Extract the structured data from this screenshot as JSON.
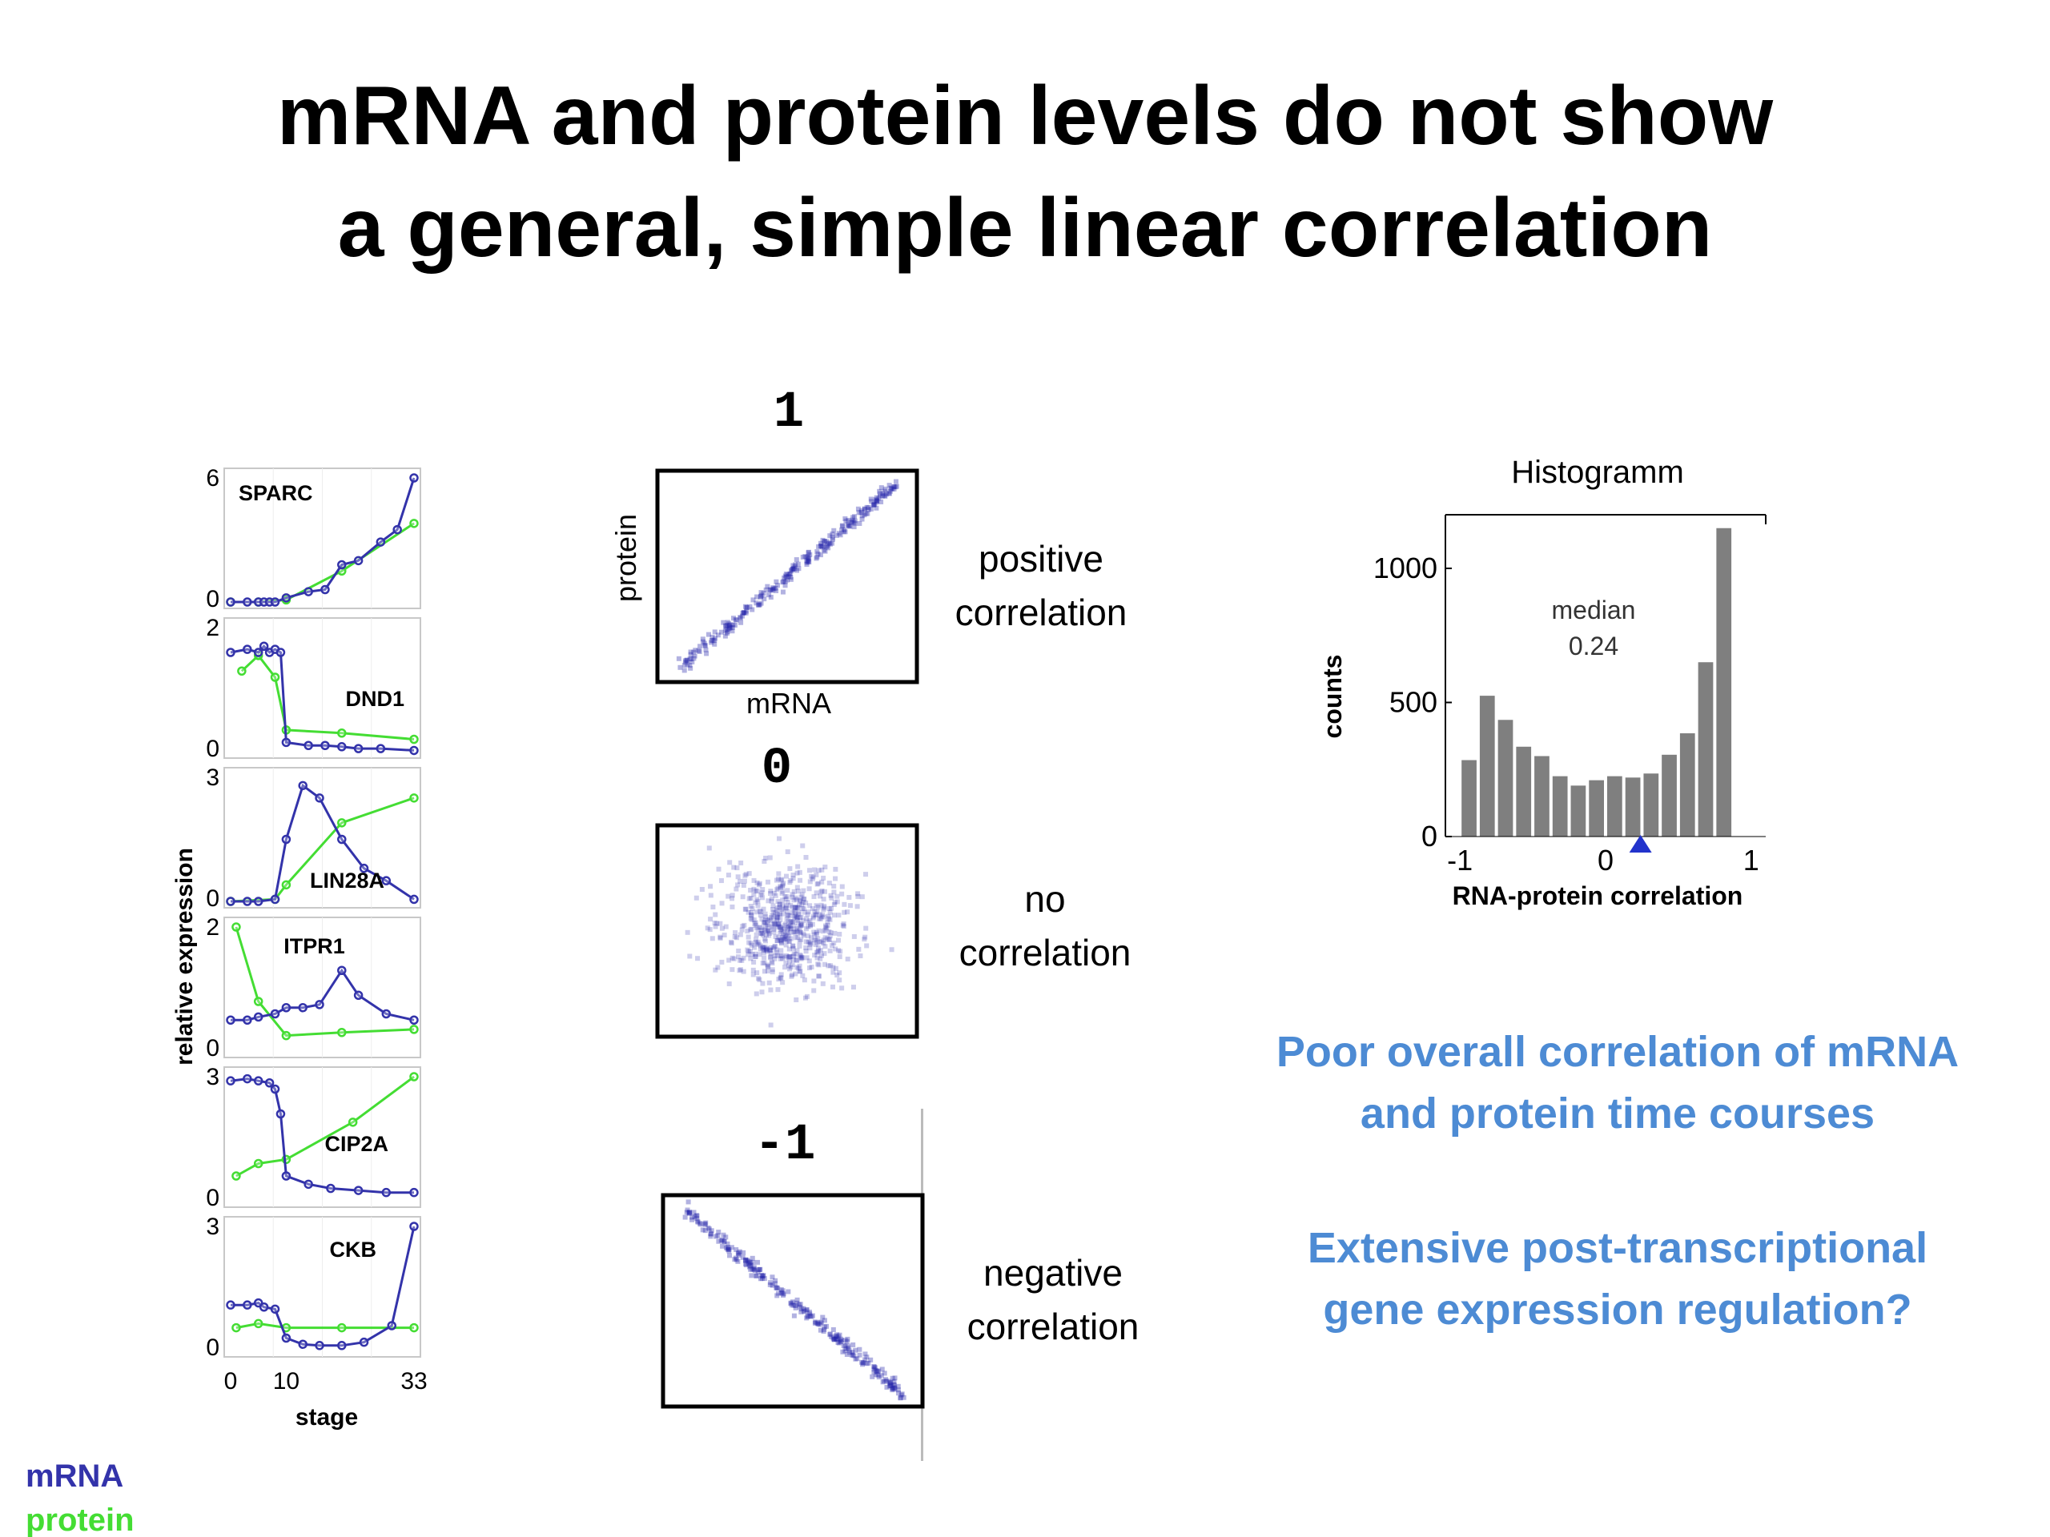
{
  "title": {
    "line1": "mRNA and protein levels do not show",
    "line2": "a general, simple linear correlation"
  },
  "legend": {
    "mrna": "mRNA",
    "protein": "protein",
    "mrna_color": "#3333aa",
    "protein_color": "#44dd33"
  },
  "timecourse": {
    "ylabel": "relative  expression",
    "xlabel": "stage",
    "xticks": [
      "0",
      "10",
      "33"
    ],
    "xlim": [
      0,
      33
    ],
    "genes": [
      {
        "name": "SPARC",
        "ymax_label": "6",
        "ymin_label": "0",
        "ymax": 6,
        "mrna": [
          [
            0,
            0
          ],
          [
            3,
            0
          ],
          [
            5,
            0
          ],
          [
            6,
            0
          ],
          [
            7,
            0
          ],
          [
            8,
            0
          ],
          [
            10,
            0.2
          ],
          [
            14,
            0.5
          ],
          [
            17,
            0.6
          ],
          [
            20,
            1.8
          ],
          [
            23,
            2.0
          ],
          [
            27,
            2.9
          ],
          [
            30,
            3.5
          ],
          [
            33,
            6.0
          ]
        ],
        "protein": [
          [
            0,
            0
          ],
          [
            5,
            0
          ],
          [
            10,
            0.1
          ],
          [
            20,
            1.5
          ],
          [
            33,
            3.8
          ]
        ]
      },
      {
        "name": "DND1",
        "ymax_label": "2",
        "ymin_label": "0",
        "ymax": 2,
        "mrna": [
          [
            0,
            1.6
          ],
          [
            3,
            1.65
          ],
          [
            5,
            1.6
          ],
          [
            6,
            1.7
          ],
          [
            7,
            1.6
          ],
          [
            8,
            1.65
          ],
          [
            9,
            1.6
          ],
          [
            10,
            0.15
          ],
          [
            14,
            0.1
          ],
          [
            17,
            0.1
          ],
          [
            20,
            0.08
          ],
          [
            23,
            0.05
          ],
          [
            27,
            0.05
          ],
          [
            33,
            0.02
          ]
        ],
        "protein": [
          [
            2,
            1.3
          ],
          [
            5,
            1.55
          ],
          [
            8,
            1.2
          ],
          [
            10,
            0.35
          ],
          [
            20,
            0.3
          ],
          [
            33,
            0.2
          ]
        ]
      },
      {
        "name": "LIN28A",
        "ymax_label": "3",
        "ymin_label": "0",
        "ymax": 3,
        "mrna": [
          [
            0,
            0
          ],
          [
            3,
            0
          ],
          [
            5,
            0
          ],
          [
            8,
            0.05
          ],
          [
            10,
            1.5
          ],
          [
            13,
            2.8
          ],
          [
            16,
            2.5
          ],
          [
            20,
            1.5
          ],
          [
            24,
            0.8
          ],
          [
            28,
            0.5
          ],
          [
            33,
            0.05
          ]
        ],
        "protein": [
          [
            0,
            0
          ],
          [
            8,
            0.05
          ],
          [
            10,
            0.4
          ],
          [
            20,
            1.9
          ],
          [
            33,
            2.5
          ]
        ]
      },
      {
        "name": "ITPR1",
        "ymax_label": "2",
        "ymin_label": "0",
        "ymax": 2,
        "mrna": [
          [
            0,
            0.5
          ],
          [
            3,
            0.5
          ],
          [
            5,
            0.55
          ],
          [
            8,
            0.6
          ],
          [
            10,
            0.7
          ],
          [
            13,
            0.7
          ],
          [
            16,
            0.75
          ],
          [
            20,
            1.3
          ],
          [
            23,
            0.9
          ],
          [
            28,
            0.6
          ],
          [
            33,
            0.5
          ]
        ],
        "protein": [
          [
            1,
            2.0
          ],
          [
            5,
            0.8
          ],
          [
            10,
            0.25
          ],
          [
            20,
            0.3
          ],
          [
            33,
            0.35
          ]
        ]
      },
      {
        "name": "CIP2A",
        "ymax_label": "3",
        "ymin_label": "0",
        "ymax": 3,
        "mrna": [
          [
            0,
            2.9
          ],
          [
            3,
            2.95
          ],
          [
            5,
            2.9
          ],
          [
            7,
            2.85
          ],
          [
            8,
            2.7
          ],
          [
            9,
            2.1
          ],
          [
            10,
            0.6
          ],
          [
            14,
            0.4
          ],
          [
            18,
            0.3
          ],
          [
            23,
            0.25
          ],
          [
            28,
            0.2
          ],
          [
            33,
            0.2
          ]
        ],
        "protein": [
          [
            1,
            0.6
          ],
          [
            5,
            0.9
          ],
          [
            10,
            1.0
          ],
          [
            22,
            1.9
          ],
          [
            33,
            3.0
          ]
        ]
      },
      {
        "name": "CKB",
        "ymax_label": "3",
        "ymin_label": "0",
        "ymax": 3,
        "mrna": [
          [
            0,
            1.1
          ],
          [
            3,
            1.1
          ],
          [
            5,
            1.15
          ],
          [
            6,
            1.05
          ],
          [
            8,
            1.0
          ],
          [
            10,
            0.3
          ],
          [
            13,
            0.15
          ],
          [
            16,
            0.12
          ],
          [
            20,
            0.12
          ],
          [
            24,
            0.2
          ],
          [
            29,
            0.6
          ],
          [
            33,
            3.0
          ]
        ],
        "protein": [
          [
            1,
            0.55
          ],
          [
            5,
            0.65
          ],
          [
            10,
            0.55
          ],
          [
            20,
            0.55
          ],
          [
            33,
            0.55
          ]
        ]
      }
    ]
  },
  "scatter": {
    "x_label": "mRNA",
    "y_label": "protein",
    "panels": [
      {
        "corr_label": "1",
        "desc_line1": "positive",
        "desc_line2": "correlation",
        "correlation": 1
      },
      {
        "corr_label": "0",
        "desc_line1": "no",
        "desc_line2": "correlation",
        "correlation": 0
      },
      {
        "corr_label": "-1",
        "desc_line1": "negative",
        "desc_line2": "correlation",
        "correlation": -1
      }
    ],
    "point_color": "#2222aa"
  },
  "chart_data": {
    "type": "bar",
    "title": "Histogramm",
    "xlabel": "RNA-protein correlation",
    "ylabel": "counts",
    "x_tick_labels": [
      "-1",
      "0",
      "1"
    ],
    "y_tick_labels": [
      "0",
      "500",
      "1000"
    ],
    "xlim": [
      -1.1,
      1.1
    ],
    "ylim": [
      0,
      1200
    ],
    "bin_centers": [
      -0.9375,
      -0.8125,
      -0.6875,
      -0.5625,
      -0.4375,
      -0.3125,
      -0.1875,
      -0.0625,
      0.0625,
      0.1875,
      0.3125,
      0.4375,
      0.5625,
      0.6875,
      0.8125,
      0.9375
    ],
    "values": [
      285,
      525,
      435,
      335,
      300,
      225,
      190,
      210,
      225,
      220,
      235,
      305,
      385,
      650,
      1150,
      0
    ],
    "bar_color": "#7f7f7f",
    "annotation_line1": "median",
    "annotation_line2": "0.24",
    "median": 0.24,
    "marker_color": "#2233cc"
  },
  "notes": {
    "line1": "Poor overall correlation of mRNA",
    "line2": "and protein time courses",
    "line3": "Extensive post-transcriptional",
    "line4": "gene expression regulation?"
  }
}
